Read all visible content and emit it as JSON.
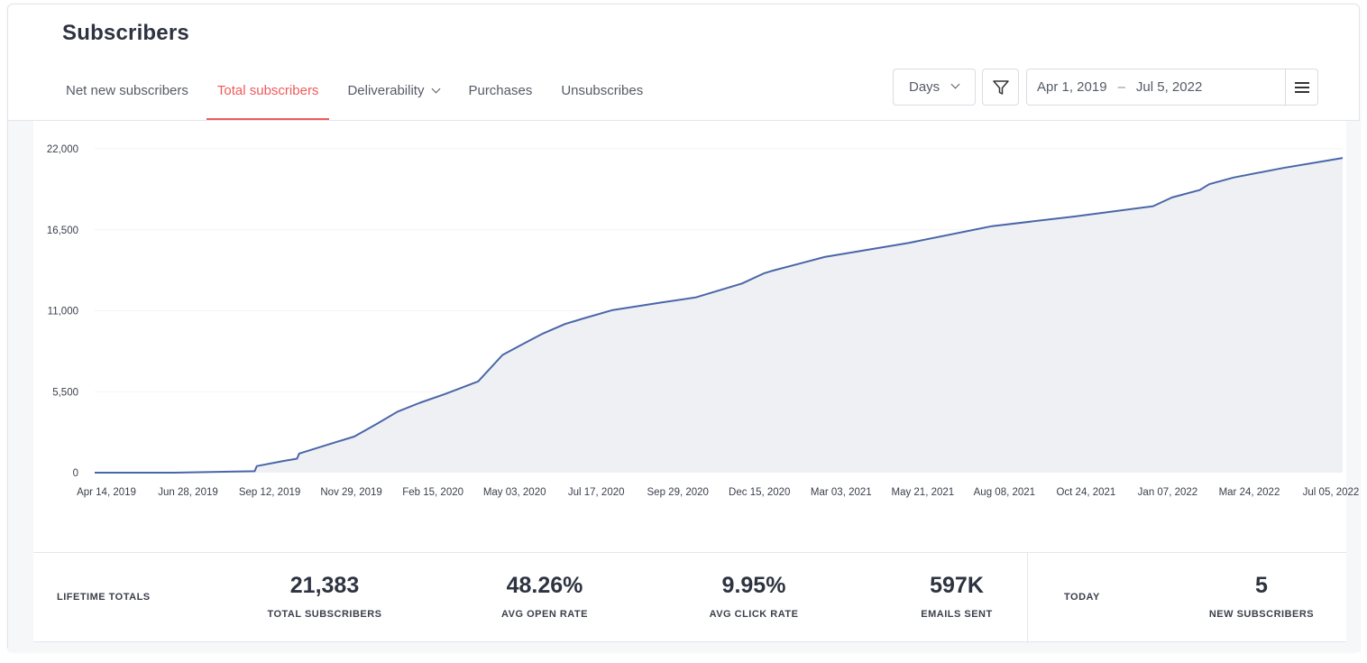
{
  "page": {
    "title": "Subscribers"
  },
  "tabs": [
    {
      "label": "Net new subscribers",
      "active": false
    },
    {
      "label": "Total subscribers",
      "active": true
    },
    {
      "label": "Deliverability",
      "active": false,
      "has_dropdown": true
    },
    {
      "label": "Purchases",
      "active": false
    },
    {
      "label": "Unsubscribes",
      "active": false
    }
  ],
  "controls": {
    "interval": "Days",
    "date_start": "Apr 1, 2019",
    "date_separator": "–",
    "date_end": "Jul 5, 2022",
    "filter_icon": "filter-icon",
    "menu_icon": "hamburger-menu-icon"
  },
  "colors": {
    "accent": "#ef5b5b",
    "line": "#4a66a8",
    "fill": "#eef0f4"
  },
  "chart_data": {
    "type": "area",
    "title": "",
    "xlabel": "",
    "ylabel": "",
    "ylim": [
      0,
      22000
    ],
    "yticks": [
      0,
      5500,
      11000,
      16500,
      22000
    ],
    "ytick_labels": [
      "0",
      "5,500",
      "11,000",
      "16,500",
      "22,000"
    ],
    "xtick_labels": [
      "Apr 14, 2019",
      "Jun 28, 2019",
      "Sep 12, 2019",
      "Nov 29, 2019",
      "Feb 15, 2020",
      "May 03, 2020",
      "Jul 17, 2020",
      "Sep 29, 2020",
      "Dec 15, 2020",
      "Mar 03, 2021",
      "May 21, 2021",
      "Aug 08, 2021",
      "Oct 24, 2021",
      "Jan 07, 2022",
      "Mar 24, 2022",
      "Jul 05, 2022"
    ],
    "grid": true,
    "legend": "none",
    "series": [
      {
        "x": [
          "2019-04-14",
          "2019-06-28",
          "2019-09-12",
          "2019-09-14",
          "2019-10-10",
          "2019-10-22",
          "2019-10-24",
          "2019-11-29",
          "2019-12-15",
          "2020-01-05",
          "2020-01-25",
          "2020-02-15",
          "2020-03-10",
          "2020-04-10",
          "2020-05-03",
          "2020-05-25",
          "2020-06-10",
          "2020-07-01",
          "2020-07-17",
          "2020-08-15",
          "2020-09-29",
          "2020-11-01",
          "2020-12-15",
          "2021-01-05",
          "2021-01-12",
          "2021-03-03",
          "2021-05-21",
          "2021-08-08",
          "2021-10-24",
          "2022-01-07",
          "2022-01-25",
          "2022-02-20",
          "2022-03-01",
          "2022-03-24",
          "2022-05-10",
          "2022-06-20",
          "2022-07-05"
        ],
        "y": [
          0,
          0,
          100,
          450,
          800,
          950,
          1300,
          2100,
          2450,
          3300,
          4150,
          4750,
          5350,
          6200,
          8000,
          8850,
          9450,
          10100,
          10450,
          11050,
          11550,
          11900,
          12850,
          13550,
          13700,
          14650,
          15600,
          16750,
          17400,
          18100,
          18700,
          19200,
          19600,
          20050,
          20700,
          21200,
          21383
        ]
      }
    ]
  },
  "stats": {
    "lifetime_label": "LIFETIME TOTALS",
    "total_subscribers": {
      "value": "21,383",
      "label": "TOTAL SUBSCRIBERS"
    },
    "avg_open_rate": {
      "value": "48.26%",
      "label": "AVG OPEN RATE"
    },
    "avg_click_rate": {
      "value": "9.95%",
      "label": "AVG CLICK RATE"
    },
    "emails_sent": {
      "value": "597K",
      "label": "EMAILS SENT"
    },
    "today_label": "TODAY",
    "new_subscribers": {
      "value": "5",
      "label": "NEW SUBSCRIBERS"
    }
  }
}
